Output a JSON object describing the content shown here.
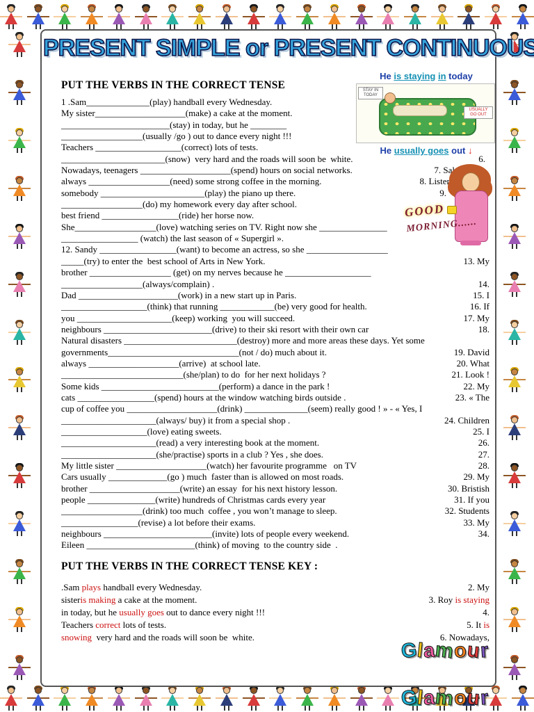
{
  "page": {
    "title": "PRESENT SIMPLE or PRESENT CONTINUOUS",
    "h1": "PUT THE VERBS IN THE CORRECT TENSE",
    "h2": "PUT THE VERBS IN THE CORRECT TENSE  KEY :"
  },
  "illustration": {
    "top_parts": [
      {
        "t": "He ",
        "u": false
      },
      {
        "t": "is staying",
        "u": true
      },
      {
        "t": " ",
        "u": false
      },
      {
        "t": "in",
        "u": true
      },
      {
        "t": " today",
        "u": false
      }
    ],
    "bottom_parts": [
      {
        "t": "He ",
        "u": false
      },
      {
        "t": "usually goes",
        "u": true
      },
      {
        "t": " out",
        "u": false
      }
    ],
    "tag_stay": "STAY IN TODAY",
    "tag_go": "USUALLY GO OUT",
    "arrow": "↓"
  },
  "morning": {
    "line1": "GOOD",
    "line2": "MORNING......"
  },
  "exercise": {
    "lines": [
      {
        "l": "1 .Sam______________(play) handball every Wednesday.",
        "r": ""
      },
      {
        "l": "My sister____________________(make) a cake at the moment.",
        "r": ""
      },
      {
        "l": "________________________(stay) in today, but he ________",
        "r": ""
      },
      {
        "l": "__________________(usually /go ) out to dance every night !!!",
        "r": ""
      },
      {
        "l": "Teachers ___________________(correct) lots of tests.",
        "r": ""
      },
      {
        "l": "_______________________(snow)  very hard and the roads will soon be  white.",
        "r": "6.",
        "pad": 6
      },
      {
        "l": "Nowadays, teenagers ____________________(spend) hours on social networks.",
        "r": "7. Sal",
        "pad": 50
      },
      {
        "l": "always __________________(need) some strong coffee in the morning.",
        "r": "8. Listen",
        "pad": 55
      },
      {
        "l": "somebody _______________________(play) the piano up there.",
        "r": "9.",
        "pad": 62
      },
      {
        "l": "__________________(do) my homework every day after school.",
        "r": ""
      },
      {
        "l": "best friend _________________(ride) her horse now.",
        "r": ""
      },
      {
        "l": "She__________________(love) watching series on TV. Right now she _______________",
        "r": ""
      },
      {
        "l": "_________________ (watch) the last season of « Supergirl ».",
        "r": ""
      },
      {
        "l": "12. Sandy _________________(want) to become an actress, so she __________________",
        "r": ""
      },
      {
        "l": "_____(try) to enter the  best school of Arts in New York.",
        "r": "13. My"
      },
      {
        "l": "brother __________________ (get) on my nerves because he ___________________",
        "r": ""
      },
      {
        "l": "__________________(always/complain) .",
        "r": "14."
      },
      {
        "l": "Dad ______________________(work) in a new start up in Paris.",
        "r": "15. I"
      },
      {
        "l": "___________________(think) that running ____________(be) very good for health.",
        "r": "16. If"
      },
      {
        "l": "you _____________________(keep) working  you will succeed.",
        "r": "17. My"
      },
      {
        "l": "neighbours ________________________(drive) to their ski resort with their own car",
        "r": "18."
      },
      {
        "l": "Natural disasters _________________________(destroy) more and more areas these days. Yet some",
        "r": ""
      },
      {
        "l": "governments_____________________________(not / do) much about it.",
        "r": "19. David"
      },
      {
        "l": "always ____________________(arrive)  at school late.",
        "r": "20. What"
      },
      {
        "l": "___________________________(she/plan) to do  for her next holidays ?",
        "r": "21. Look !"
      },
      {
        "l": "Some kids __________________________(perform) a dance in the park !",
        "r": "22. My"
      },
      {
        "l": "cats _________________(spend) hours at the window watching birds outside .",
        "r": "23. « The"
      },
      {
        "l": "cup of coffee you ____________________(drink) ______________(seem) really good ! » - « Yes, I",
        "r": ""
      },
      {
        "l": "_____________________(always/ buy) it from a special shop .",
        "r": "24. Children"
      },
      {
        "l": "___________________(love) eating sweets.",
        "r": "25. I"
      },
      {
        "l": "_____________________(read) a very interesting book at the moment.",
        "r": "26."
      },
      {
        "l": "_____________________(she/practise) sports in a club ? Yes , she does.",
        "r": "27."
      },
      {
        "l": "My little sister ____________________(watch) her favourite programme   on TV",
        "r": "28."
      },
      {
        "l": "Cars usually _____________(go ) much  faster than is allowed on most roads.",
        "r": "29. My"
      },
      {
        "l": "brother ____________________(write) an essay  for his next history lesson.",
        "r": "30. Bristish"
      },
      {
        "l": "people _______________(write) hundreds of Christmas cards every year",
        "r": "31. If you"
      },
      {
        "l": "__________________(drink) too much  coffee , you won’t manage to sleep.",
        "r": "32. Students"
      },
      {
        "l": "_________________(revise) a lot before their exams.",
        "r": "33. My"
      },
      {
        "l": "neighbours ________________________(invite) lots of people every weekend.",
        "r": "34."
      },
      {
        "l": "Eileen ________________________(think) of moving  to the country side  .",
        "r": ""
      }
    ]
  },
  "key": {
    "lines": [
      {
        "segs": [
          {
            "t": ".Sam ",
            "red": false
          },
          {
            "t": "plays",
            "red": true
          },
          {
            "t": " handball every Wednesday.",
            "red": false
          }
        ],
        "rsegs": [
          {
            "t": "2. My",
            "red": false
          }
        ]
      },
      {
        "segs": [
          {
            "t": "sister",
            "red": false
          },
          {
            "t": "is making",
            "red": true
          },
          {
            "t": " a cake at the moment.",
            "red": false
          }
        ],
        "rsegs": [
          {
            "t": "3. Roy ",
            "red": false
          },
          {
            "t": "is staying",
            "red": true
          }
        ]
      },
      {
        "segs": [
          {
            "t": "in today, but he ",
            "red": false
          },
          {
            "t": "usually goes",
            "red": true
          },
          {
            "t": " out to dance every night !!!",
            "red": false
          }
        ],
        "rsegs": [
          {
            "t": "4.",
            "red": false
          }
        ]
      },
      {
        "segs": [
          {
            "t": "Teachers ",
            "red": false
          },
          {
            "t": "correct",
            "red": true
          },
          {
            "t": " lots of tests.",
            "red": false
          }
        ],
        "rsegs": [
          {
            "t": "5. It ",
            "red": false
          },
          {
            "t": "is",
            "red": true
          }
        ]
      },
      {
        "segs": [
          {
            "t": "snowing",
            "red": true
          },
          {
            "t": "  very hard and the roads will soon be  white.",
            "red": false
          }
        ],
        "rsegs": [
          {
            "t": "6. Nowadays,",
            "red": false
          }
        ]
      }
    ]
  },
  "logo": {
    "text": "Glamour",
    "letters": [
      {
        "ch": "G",
        "color": "#1fb6d9"
      },
      {
        "ch": "l",
        "color": "#f0c419"
      },
      {
        "ch": "a",
        "color": "#ef5ba1"
      },
      {
        "ch": "m",
        "color": "#4caf50"
      },
      {
        "ch": "o",
        "color": "#f07f1f"
      },
      {
        "ch": "u",
        "color": "#e23b3b"
      },
      {
        "ch": "r",
        "color": "#7e57c2"
      }
    ]
  },
  "border": {
    "colors": [
      "#d83b3b",
      "#3b5bd8",
      "#3bb54a",
      "#f08a24",
      "#9b59b6",
      "#e87fb0",
      "#2ab5a5",
      "#e8c832",
      "#2c3e7a"
    ],
    "skins": [
      "#f1c08e",
      "#8d5524",
      "#f6cfa0",
      "#c68642"
    ],
    "hair": [
      "#222222",
      "#7a4a1e",
      "#d8a400",
      "#c05a28",
      "#111111"
    ]
  }
}
